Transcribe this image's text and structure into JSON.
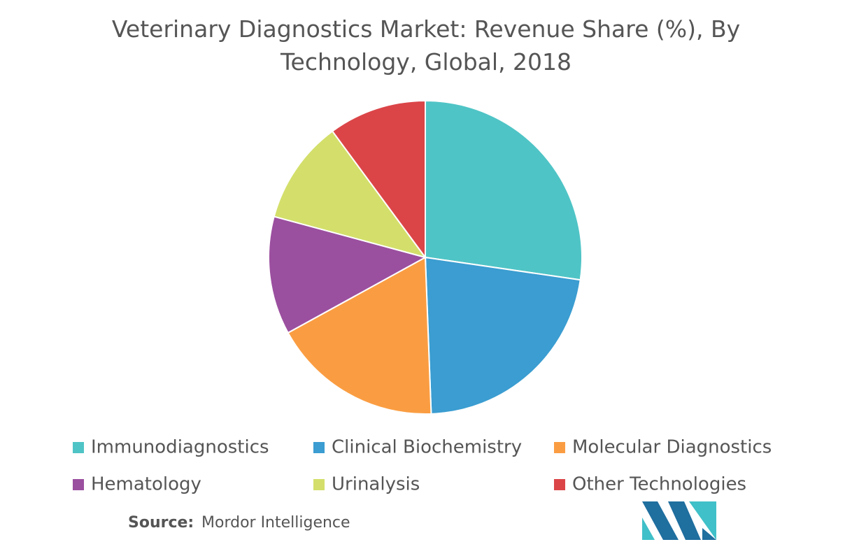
{
  "chart_data": {
    "type": "pie",
    "title": "Veterinary Diagnostics Market: Revenue Share (%), By Technology, Global, 2018",
    "categories": [
      "Immunodiagnostics",
      "Clinical Biochemistry",
      "Molecular Diagnostics",
      "Hematology",
      "Urinalysis",
      "Other Technologies"
    ],
    "values": [
      27.3,
      22.1,
      17.6,
      12.2,
      10.7,
      10.1
    ],
    "colors": [
      "#4fc4c6",
      "#3b9dd1",
      "#fa9d42",
      "#9b4f9f",
      "#d3df6a",
      "#db4548"
    ],
    "source": {
      "label": "Source:",
      "text": "Mordor Intelligence"
    }
  }
}
